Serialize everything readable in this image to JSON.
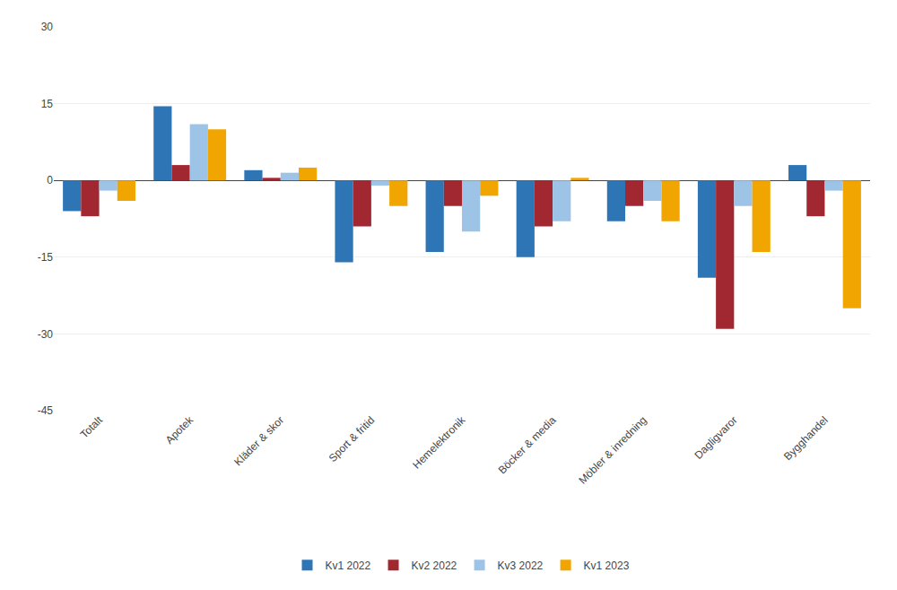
{
  "chart_data": {
    "type": "bar",
    "categories": [
      "Totalt",
      "Apotek",
      "Kläder & skor",
      "Sport & fritid",
      "Hemelektronik",
      "Böcker & media",
      "Möbler & inredning",
      "Dagligvaror",
      "Bygghandel"
    ],
    "series": [
      {
        "name": "Kv1 2022",
        "color": "#2E75B6",
        "values": [
          -6,
          14.5,
          2,
          -16,
          -14,
          -15,
          -8,
          -19,
          3
        ]
      },
      {
        "name": "Kv2 2022",
        "color": "#A12830",
        "values": [
          -7,
          3,
          0.5,
          -9,
          -5,
          -9,
          -5,
          -29,
          -7
        ]
      },
      {
        "name": "Kv3 2022",
        "color": "#9DC3E6",
        "values": [
          -2,
          11,
          1.5,
          -1,
          -10,
          -8,
          -4,
          -5,
          -2
        ]
      },
      {
        "name": "Kv1 2023",
        "color": "#F0A500",
        "values": [
          -4,
          10,
          2.5,
          -5,
          -3,
          0.5,
          -8,
          -14,
          -25
        ]
      }
    ],
    "ylim": [
      -45,
      30
    ],
    "yticks": [
      -45,
      -30,
      -15,
      0,
      15,
      30
    ],
    "grid": true,
    "legend": "bottom"
  }
}
